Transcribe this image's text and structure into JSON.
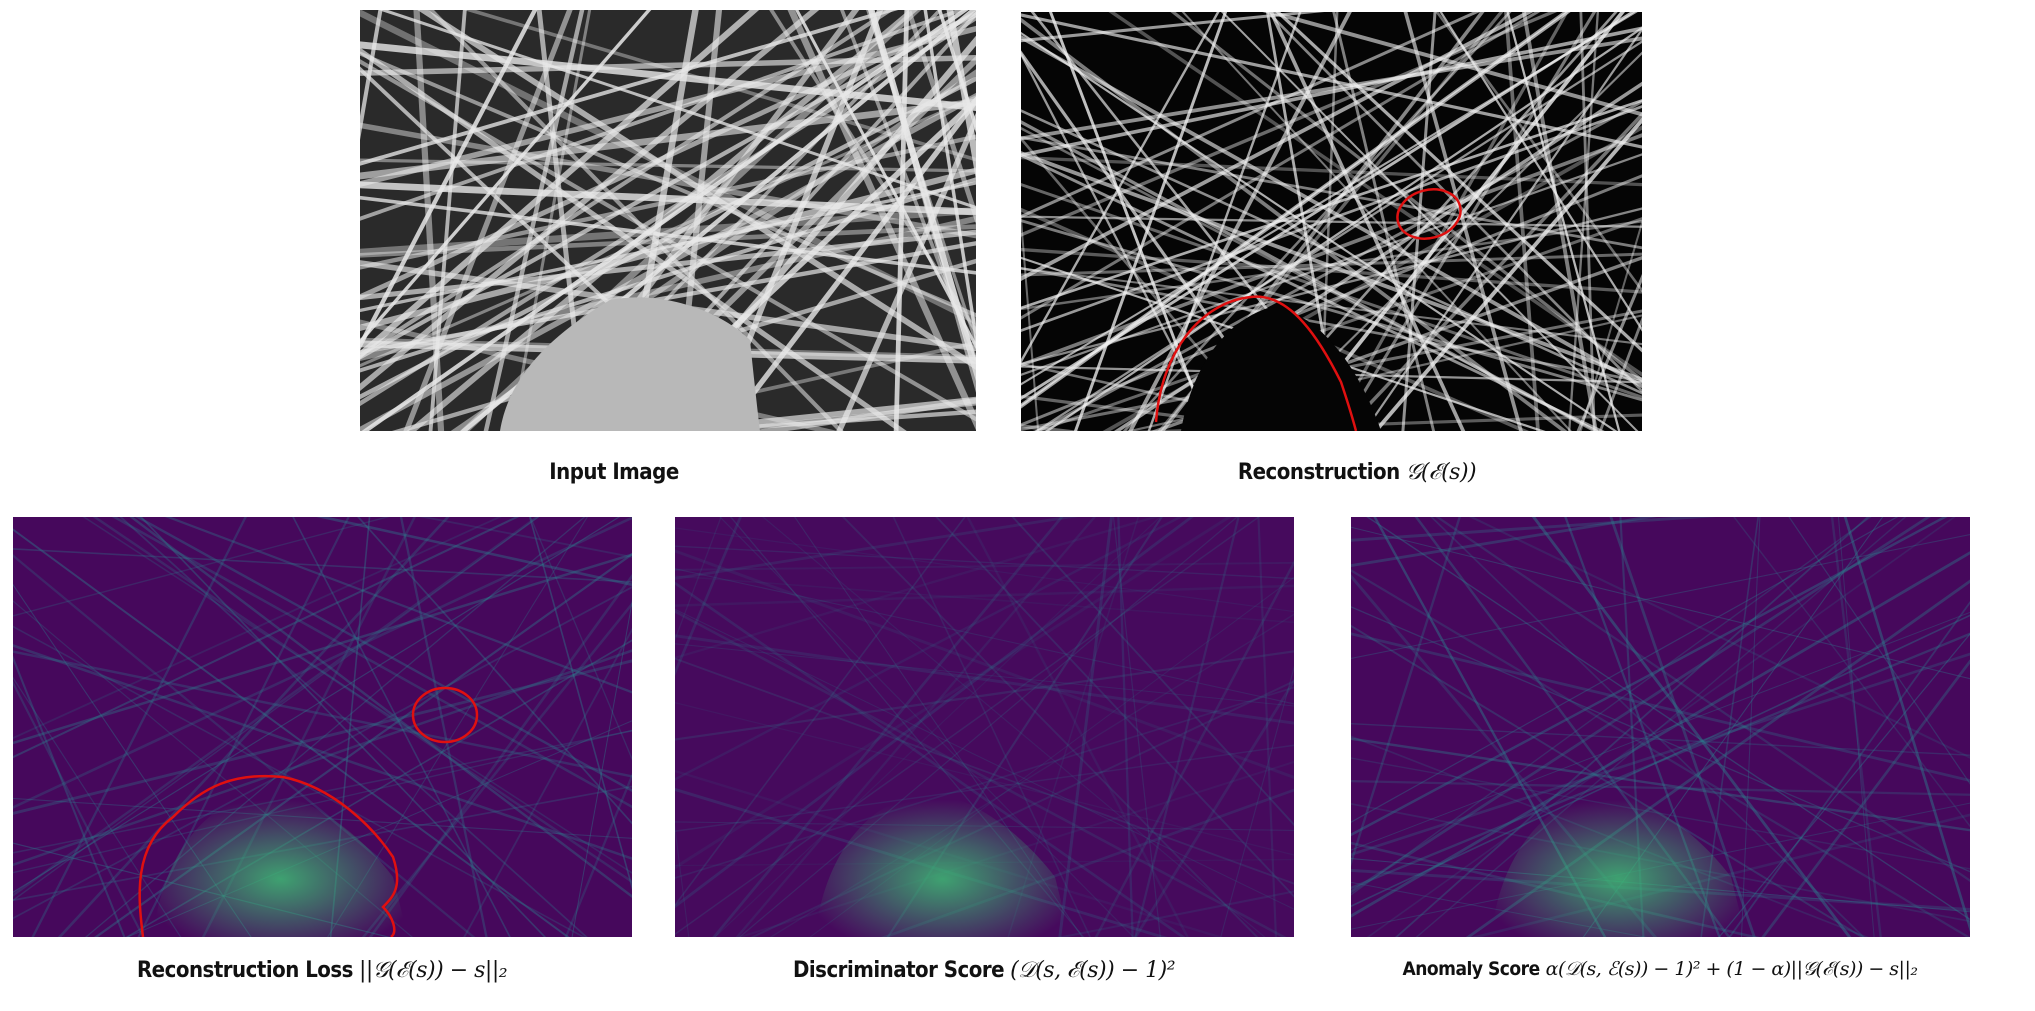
{
  "panels": {
    "input": {
      "caption": "Input Image"
    },
    "reconstruction": {
      "caption": "Reconstruction",
      "formula": "𝒢(ℰ(s))"
    },
    "reconstruction_loss": {
      "caption": "Reconstruction Loss",
      "formula": "||𝒢(ℰ(s)) − s||₂"
    },
    "discriminator_score": {
      "caption": "Discriminator Score",
      "formula": "(𝒟(s, ℰ(s)) − 1)²"
    },
    "anomaly_score": {
      "caption": "Anomaly Score",
      "formula": "α(𝒟(s, ℰ(s)) − 1)² + (1 − α)||𝒢(ℰ(s)) − s||₂"
    }
  },
  "colors": {
    "annotation": "#e01010",
    "heatmap_low": "#440154",
    "heatmap_mid": "#21918c",
    "heatmap_high": "#b5de2b"
  }
}
